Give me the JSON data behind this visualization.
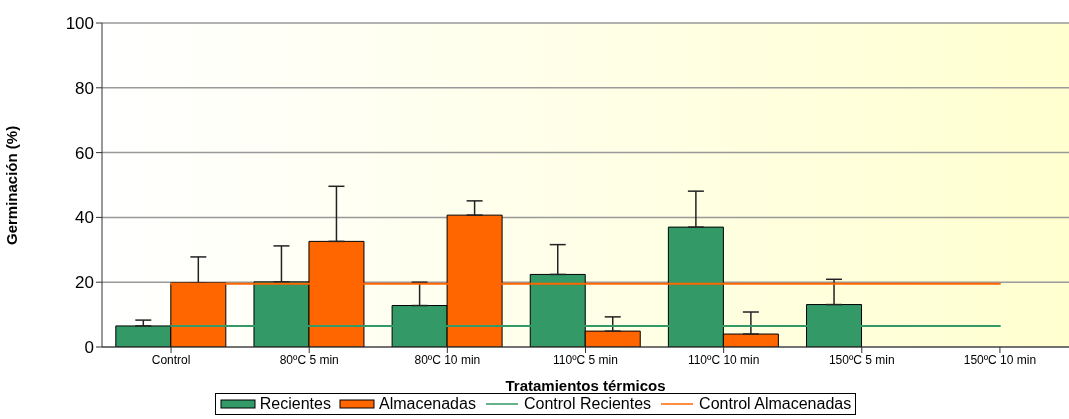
{
  "chart_data": {
    "type": "bar",
    "xlabel": "Tratamientos térmicos",
    "ylabel": "Germinación (%)",
    "categories": [
      "Control",
      "80ºC 5 min",
      "80ºC 10 min",
      "110ºC 5 min",
      "110ºC 10 min",
      "150ºC 5 min",
      "150ºC 10 min"
    ],
    "series": [
      {
        "name": "Recientes",
        "color": "#339966",
        "values": [
          6.5,
          20.1,
          12.8,
          22.4,
          37.0,
          13.1,
          0
        ],
        "errors": [
          [
            6.5,
            8.3
          ],
          [
            20.1,
            31.2
          ],
          [
            12.8,
            20
          ],
          [
            22.4,
            31.6
          ],
          [
            37.0,
            48.1
          ],
          [
            13.1,
            20.9
          ],
          null
        ]
      },
      {
        "name": "Almacenadas",
        "color": "#ff6600",
        "values": [
          19.8,
          32.6,
          40.7,
          4.9,
          4.0,
          0,
          0
        ],
        "errors": [
          [
            19.8,
            27.8
          ],
          [
            32.6,
            49.6
          ],
          [
            40.7,
            45.1
          ],
          [
            4.9,
            9.3
          ],
          [
            4.0,
            10.8
          ],
          null,
          null
        ]
      },
      {
        "name": "Control Recientes",
        "type": "line",
        "color": "#339966",
        "values": [
          6.5,
          6.5,
          6.5,
          6.5,
          6.5,
          6.5,
          6.5
        ]
      },
      {
        "name": "Control Almacenadas",
        "type": "line",
        "color": "#ff6600",
        "values": [
          19.5,
          19.5,
          19.5,
          19.5,
          19.5,
          19.5,
          19.5
        ]
      }
    ],
    "ylim": [
      0,
      100
    ],
    "yticks": [
      0,
      20,
      40,
      60,
      80,
      100
    ],
    "grid": "y",
    "legend": "bottom",
    "marker": "none",
    "line_style": "solid"
  }
}
